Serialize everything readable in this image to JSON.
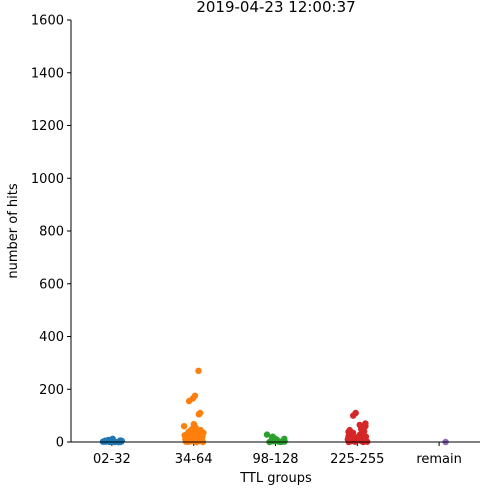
{
  "chart_data": {
    "type": "scatter",
    "title": "2019-04-23 12:00:37",
    "xlabel": "TTL groups",
    "ylabel": "number of hits",
    "categories": [
      "02-32",
      "34-64",
      "98-128",
      "225-255",
      "remain"
    ],
    "ylim": [
      0,
      1600
    ],
    "yticks": [
      0,
      200,
      400,
      600,
      800,
      1000,
      1200,
      1400,
      1600
    ],
    "grid": false,
    "legend": "none",
    "colors": [
      "#1f77b4",
      "#ff7f0e",
      "#2ca02c",
      "#d62728",
      "#9467bd"
    ],
    "series": [
      {
        "category": "02-32",
        "values": [
          0,
          1,
          2,
          0,
          3,
          1,
          5,
          8,
          12,
          2,
          0,
          1,
          4,
          0,
          2,
          6,
          1,
          0
        ]
      },
      {
        "category": "34-64",
        "values": [
          270,
          175,
          165,
          155,
          110,
          105,
          68,
          65,
          62,
          60,
          55,
          50,
          48,
          45,
          42,
          40,
          38,
          35,
          32,
          30,
          28,
          25,
          22,
          20,
          18,
          15,
          12,
          10,
          8,
          6,
          5,
          4,
          3,
          2,
          1,
          0,
          0,
          1,
          2,
          3,
          5,
          8,
          10,
          14,
          18,
          22,
          26,
          30
        ]
      },
      {
        "category": "98-128",
        "values": [
          28,
          20,
          15,
          12,
          10,
          8,
          6,
          5,
          4,
          3,
          2,
          1,
          0,
          0,
          1,
          2,
          3,
          5,
          7,
          9,
          11
        ]
      },
      {
        "category": "225-255",
        "values": [
          110,
          100,
          70,
          65,
          60,
          50,
          45,
          40,
          38,
          35,
          30,
          28,
          25,
          22,
          20,
          18,
          15,
          12,
          10,
          8,
          6,
          5,
          4,
          3,
          2,
          1,
          0,
          0,
          1,
          2,
          4,
          6,
          9,
          12,
          16,
          20
        ]
      },
      {
        "category": "remain",
        "values": [
          0
        ]
      }
    ]
  }
}
